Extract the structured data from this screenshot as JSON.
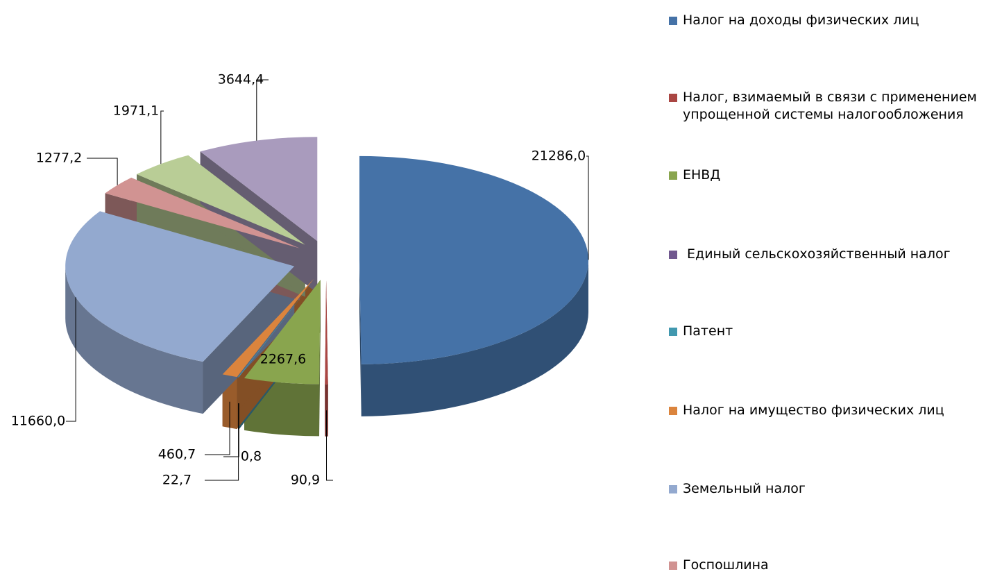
{
  "chart_data": {
    "type": "pie",
    "categories": [
      "Налог на доходы физических лиц",
      "Налог, взимаемый в связи с применением упрощенной системы налогообложения",
      "ЕНВД",
      " Единый сельскохозяйственный налог",
      "Патент",
      "Налог на имущество физических лиц",
      "Земельный налог",
      "Госпошлина",
      null,
      null
    ],
    "values": [
      21286.0,
      90.9,
      2267.6,
      0.8,
      22.7,
      460.7,
      11660.0,
      1277.2,
      1971.1,
      3644.4
    ],
    "value_labels": [
      "21286,0",
      "90,9",
      "2267,6",
      "0,8",
      "22,7",
      "460,7",
      "11660,0",
      "1277,2",
      "1971,1",
      "3644,4"
    ],
    "colors": [
      "#4572a7",
      "#aa4643",
      "#89a54e",
      "#71588f",
      "#4198af",
      "#db843d",
      "#93a9cf",
      "#d19392",
      "#b9cd96",
      "#a99bbd"
    ],
    "legend": "right"
  }
}
